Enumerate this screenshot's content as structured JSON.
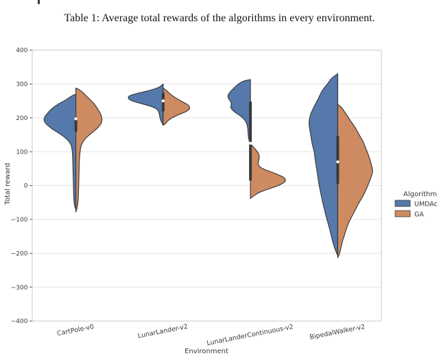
{
  "page": {
    "caption": "Table 1: Average total rewards of the algorithms in every environment."
  },
  "chart_data": {
    "type": "violin",
    "variant": "split-violin",
    "title": "",
    "xlabel": "Environment",
    "ylabel": "Total reward",
    "ylim": [
      -400,
      400
    ],
    "grid": true,
    "ytick_values": [
      400,
      300,
      200,
      100,
      0,
      -100,
      -200,
      -300,
      -400
    ],
    "ytick_labels": [
      "400",
      "300",
      "200",
      "100",
      "0",
      "−100",
      "−200",
      "−300",
      "−400"
    ],
    "categories": [
      "CartPole-v0",
      "LunarLander-v2",
      "LunarLanderContinuous-v2",
      "BipedalWalker-v2"
    ],
    "legend": {
      "title": "Algorithm",
      "position": "right-outside",
      "entries": [
        {
          "label": "UMDAc",
          "color": "#5579AB"
        },
        {
          "label": "GA",
          "color": "#CE8A61"
        }
      ]
    },
    "colors": {
      "edge": "#3B3B3B",
      "grid": "#E3E3E3",
      "spine": "#C9C9C9",
      "text": "#3A3A3A",
      "inner_box": "#3A3A3A",
      "median_dot": "#FFFFFF"
    },
    "series": [
      {
        "name": "UMDAc",
        "side": "left",
        "color": "#5579AB",
        "profiles": [
          [
            [
              270,
              0
            ],
            [
              265,
              0.12
            ],
            [
              255,
              0.25
            ],
            [
              245,
              0.43
            ],
            [
              235,
              0.59
            ],
            [
              225,
              0.71
            ],
            [
              215,
              0.8
            ],
            [
              205,
              0.88
            ],
            [
              195,
              0.92
            ],
            [
              185,
              0.88
            ],
            [
              175,
              0.78
            ],
            [
              165,
              0.65
            ],
            [
              155,
              0.49
            ],
            [
              145,
              0.35
            ],
            [
              135,
              0.24
            ],
            [
              125,
              0.16
            ],
            [
              115,
              0.12
            ],
            [
              100,
              0.1
            ],
            [
              80,
              0.09
            ],
            [
              40,
              0.08
            ],
            [
              0,
              0.07
            ],
            [
              -40,
              0.06
            ],
            [
              -60,
              0.04
            ],
            [
              -70,
              0
            ]
          ],
          [
            [
              300,
              0
            ],
            [
              294,
              0.06
            ],
            [
              288,
              0.16
            ],
            [
              280,
              0.41
            ],
            [
              272,
              0.75
            ],
            [
              265,
              0.98
            ],
            [
              260,
              1.0
            ],
            [
              254,
              0.98
            ],
            [
              248,
              0.84
            ],
            [
              240,
              0.55
            ],
            [
              232,
              0.29
            ],
            [
              225,
              0.16
            ],
            [
              215,
              0.12
            ],
            [
              205,
              0.1
            ],
            [
              195,
              0.08
            ],
            [
              186,
              0.04
            ],
            [
              178,
              0
            ]
          ],
          [
            [
              313,
              0
            ],
            [
              310,
              0.16
            ],
            [
              305,
              0.27
            ],
            [
              298,
              0.37
            ],
            [
              290,
              0.45
            ],
            [
              280,
              0.55
            ],
            [
              270,
              0.63
            ],
            [
              262,
              0.65
            ],
            [
              254,
              0.61
            ],
            [
              246,
              0.55
            ],
            [
              238,
              0.55
            ],
            [
              230,
              0.57
            ],
            [
              222,
              0.51
            ],
            [
              214,
              0.41
            ],
            [
              206,
              0.29
            ],
            [
              198,
              0.2
            ],
            [
              190,
              0.14
            ],
            [
              182,
              0.1
            ],
            [
              172,
              0.08
            ],
            [
              160,
              0.07
            ],
            [
              145,
              0.06
            ],
            [
              132,
              0.04
            ],
            [
              125,
              0
            ]
          ],
          [
            [
              330,
              0
            ],
            [
              322,
              0.12
            ],
            [
              312,
              0.22
            ],
            [
              300,
              0.29
            ],
            [
              288,
              0.39
            ],
            [
              276,
              0.47
            ],
            [
              262,
              0.53
            ],
            [
              250,
              0.59
            ],
            [
              238,
              0.65
            ],
            [
              226,
              0.71
            ],
            [
              214,
              0.76
            ],
            [
              202,
              0.8
            ],
            [
              190,
              0.82
            ],
            [
              178,
              0.82
            ],
            [
              166,
              0.8
            ],
            [
              154,
              0.78
            ],
            [
              142,
              0.76
            ],
            [
              128,
              0.74
            ],
            [
              114,
              0.71
            ],
            [
              100,
              0.67
            ],
            [
              80,
              0.65
            ],
            [
              60,
              0.62
            ],
            [
              40,
              0.59
            ],
            [
              20,
              0.56
            ],
            [
              0,
              0.53
            ],
            [
              -25,
              0.48
            ],
            [
              -50,
              0.43
            ],
            [
              -75,
              0.37
            ],
            [
              -100,
              0.31
            ],
            [
              -125,
              0.24
            ],
            [
              -150,
              0.18
            ],
            [
              -175,
              0.12
            ],
            [
              -195,
              0.05
            ],
            [
              -207,
              0
            ]
          ]
        ]
      },
      {
        "name": "GA",
        "side": "right",
        "color": "#CE8A61",
        "profiles": [
          [
            [
              288,
              0
            ],
            [
              283,
              0.1
            ],
            [
              275,
              0.2
            ],
            [
              265,
              0.29
            ],
            [
              255,
              0.39
            ],
            [
              245,
              0.49
            ],
            [
              235,
              0.57
            ],
            [
              225,
              0.63
            ],
            [
              215,
              0.69
            ],
            [
              205,
              0.73
            ],
            [
              195,
              0.75
            ],
            [
              185,
              0.73
            ],
            [
              175,
              0.67
            ],
            [
              165,
              0.57
            ],
            [
              155,
              0.45
            ],
            [
              145,
              0.33
            ],
            [
              135,
              0.24
            ],
            [
              125,
              0.18
            ],
            [
              115,
              0.14
            ],
            [
              100,
              0.12
            ],
            [
              80,
              0.1
            ],
            [
              40,
              0.09
            ],
            [
              0,
              0.08
            ],
            [
              -40,
              0.07
            ],
            [
              -65,
              0.04
            ],
            [
              -78,
              0
            ]
          ],
          [
            [
              288,
              0
            ],
            [
              282,
              0.08
            ],
            [
              274,
              0.16
            ],
            [
              266,
              0.25
            ],
            [
              258,
              0.37
            ],
            [
              250,
              0.51
            ],
            [
              243,
              0.63
            ],
            [
              237,
              0.73
            ],
            [
              231,
              0.76
            ],
            [
              225,
              0.75
            ],
            [
              219,
              0.67
            ],
            [
              213,
              0.53
            ],
            [
              207,
              0.39
            ],
            [
              201,
              0.27
            ],
            [
              195,
              0.18
            ],
            [
              188,
              0.1
            ],
            [
              182,
              0.06
            ],
            [
              178,
              0
            ]
          ],
          [
            [
              122,
              0
            ],
            [
              117,
              0.06
            ],
            [
              110,
              0.12
            ],
            [
              102,
              0.18
            ],
            [
              94,
              0.24
            ],
            [
              86,
              0.25
            ],
            [
              78,
              0.25
            ],
            [
              70,
              0.22
            ],
            [
              62,
              0.22
            ],
            [
              54,
              0.27
            ],
            [
              46,
              0.43
            ],
            [
              38,
              0.65
            ],
            [
              30,
              0.84
            ],
            [
              24,
              0.96
            ],
            [
              18,
              1.0
            ],
            [
              12,
              1.0
            ],
            [
              5,
              0.9
            ],
            [
              -2,
              0.75
            ],
            [
              -9,
              0.55
            ],
            [
              -16,
              0.35
            ],
            [
              -23,
              0.2
            ],
            [
              -30,
              0.1
            ],
            [
              -38,
              0
            ]
          ],
          [
            [
              240,
              0
            ],
            [
              230,
              0.12
            ],
            [
              220,
              0.18
            ],
            [
              210,
              0.25
            ],
            [
              190,
              0.37
            ],
            [
              170,
              0.51
            ],
            [
              150,
              0.61
            ],
            [
              130,
              0.73
            ],
            [
              110,
              0.8
            ],
            [
              90,
              0.88
            ],
            [
              70,
              0.94
            ],
            [
              50,
              0.99
            ],
            [
              40,
              1.0
            ],
            [
              30,
              0.97
            ],
            [
              10,
              0.9
            ],
            [
              -10,
              0.82
            ],
            [
              -30,
              0.73
            ],
            [
              -50,
              0.61
            ],
            [
              -70,
              0.51
            ],
            [
              -90,
              0.41
            ],
            [
              -110,
              0.31
            ],
            [
              -130,
              0.24
            ],
            [
              -150,
              0.18
            ],
            [
              -170,
              0.12
            ],
            [
              -190,
              0.08
            ],
            [
              -205,
              0.04
            ],
            [
              -213,
              0
            ]
          ]
        ]
      }
    ],
    "inner_boxes": [
      {
        "category": "CartPole-v0",
        "range": [
          158,
          202
        ],
        "median": 197
      },
      {
        "category": "LunarLander-v2",
        "range": [
          218,
          275
        ],
        "median": 250
      },
      {
        "category": "LunarLanderContinuous-v2",
        "range": [
          14,
          249
        ],
        "median": 125
      },
      {
        "category": "BipedalWalker-v2",
        "range": [
          4,
          147
        ],
        "median": 70
      }
    ]
  }
}
